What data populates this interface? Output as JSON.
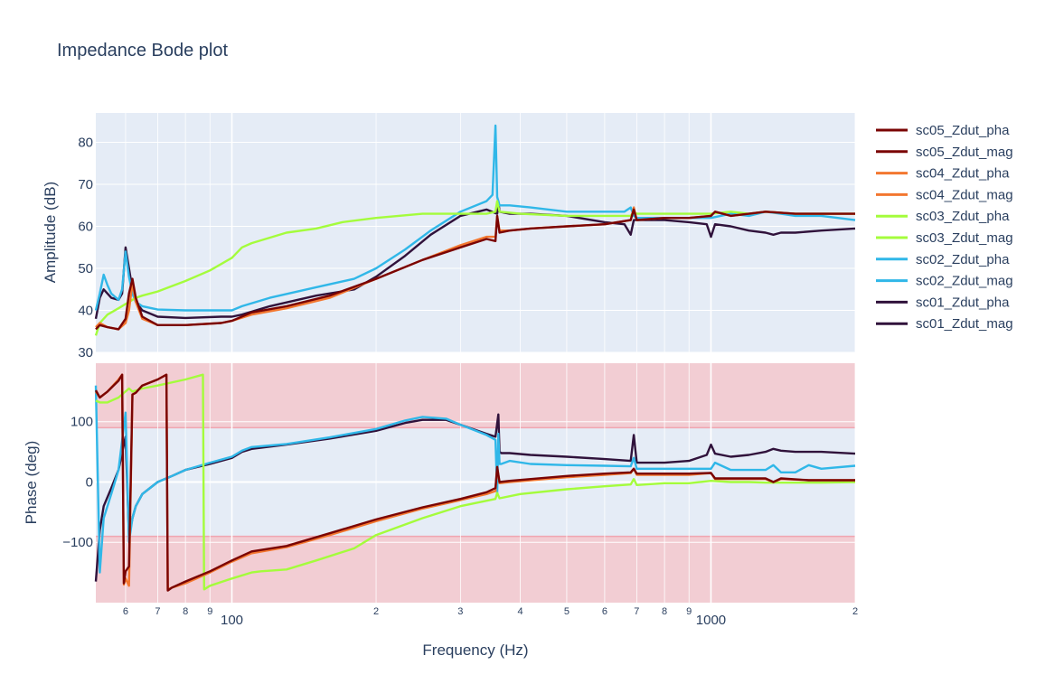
{
  "chart_data": {
    "type": "line",
    "title": "Impedance Bode plot",
    "xlabel": "Frequency (Hz)",
    "xscale": "log",
    "xlim": [
      52,
      2000
    ],
    "x_tick_labels": [
      "6",
      "7",
      "8",
      "9",
      "100",
      "2",
      "3",
      "4",
      "5",
      "6",
      "7",
      "8",
      "9",
      "1000",
      "2"
    ],
    "legend_position": "right",
    "colors": {
      "sc05": "#7a0403",
      "sc04": "#f3772f",
      "sc03": "#a4fc3c",
      "sc02": "#30b7e8",
      "sc01": "#30123b",
      "plot_background": "#e5ecf6",
      "phase_band": "#f2cdd3"
    },
    "legend": [
      "sc05_Zdut_pha",
      "sc05_Zdut_mag",
      "sc04_Zdut_pha",
      "sc04_Zdut_mag",
      "sc03_Zdut_pha",
      "sc03_Zdut_mag",
      "sc02_Zdut_pha",
      "sc02_Zdut_mag",
      "sc01_Zdut_pha",
      "sc01_Zdut_mag"
    ],
    "subplots": [
      {
        "name": "amplitude",
        "ylabel": "Amplitude (dB)",
        "ylim": [
          30,
          87
        ],
        "yticks": [
          30,
          40,
          50,
          60,
          70,
          80
        ],
        "series": [
          {
            "name": "sc01_Zdut_mag",
            "color": "#30123b",
            "x": [
              52,
              53,
              54,
              55,
              56,
              58,
              59,
              60,
              61,
              62,
              63,
              65,
              70,
              80,
              95,
              100,
              105,
              120,
              150,
              180,
              200,
              230,
              260,
              300,
              340,
              358,
              360,
              362,
              380,
              420,
              500,
              600,
              660,
              680,
              690,
              700,
              800,
              900,
              980,
              1000,
              1020,
              1100,
              1200,
              1300,
              1350,
              1400,
              1500,
              1700,
              2000
            ],
            "y": [
              38,
              43,
              45,
              44,
              43,
              42.5,
              44,
              55,
              50,
              45,
              42,
              40,
              38.5,
              38.2,
              38.5,
              38.5,
              39,
              41,
              43.5,
              45,
              48,
              53,
              58,
              62.5,
              64,
              63,
              66,
              63.5,
              63,
              63,
              62.5,
              61,
              60.5,
              58,
              61.5,
              61.5,
              61.5,
              61,
              60.5,
              57.5,
              60.5,
              60,
              59,
              58.5,
              58,
              58.5,
              58.5,
              59,
              59.5
            ]
          },
          {
            "name": "sc02_Zdut_mag",
            "color": "#30b7e8",
            "x": [
              52,
              53,
              54,
              55,
              56,
              58,
              59,
              60,
              61,
              62,
              63,
              65,
              70,
              80,
              95,
              100,
              105,
              120,
              150,
              180,
              200,
              230,
              260,
              300,
              340,
              350,
              355,
              358,
              362,
              380,
              420,
              500,
              600,
              660,
              680,
              690,
              700,
              800,
              900,
              1000,
              1100,
              1200,
              1300,
              1400,
              1500,
              1700,
              2000
            ],
            "y": [
              40,
              44,
              48.5,
              46,
              44,
              42.5,
              45,
              54,
              48,
              44,
              42,
              41,
              40.2,
              40,
              40,
              40,
              41,
              43,
              45.5,
              47.5,
              50,
              54.5,
              59,
              63.5,
              66,
              67.5,
              84,
              67,
              65,
              65,
              64.5,
              63.5,
              63.5,
              63.5,
              64.5,
              62.5,
              62,
              62,
              62,
              62,
              63,
              62.5,
              63.5,
              63,
              62.5,
              62.5,
              61.5
            ]
          },
          {
            "name": "sc03_Zdut_mag",
            "color": "#a4fc3c",
            "x": [
              52,
              53,
              55,
              58,
              61,
              63,
              65,
              70,
              80,
              90,
              100,
              105,
              110,
              130,
              150,
              170,
              200,
              250,
              300,
              340,
              355,
              358,
              362,
              400,
              500,
              600,
              680,
              690,
              700,
              800,
              900,
              1000,
              1100,
              1200,
              1300,
              1500,
              1700,
              2000
            ],
            "y": [
              34,
              37,
              39,
              40.5,
              42,
              43,
              43.5,
              44.5,
              47,
              49.5,
              52.5,
              55,
              56,
              58.5,
              59.5,
              61,
              62,
              63,
              63,
              63,
              63.5,
              66,
              63.5,
              63,
              62.5,
              62.5,
              62.5,
              63.5,
              63,
              63,
              63,
              63,
              63.5,
              63,
              63.5,
              63,
              63,
              63
            ]
          },
          {
            "name": "sc04_Zdut_mag",
            "color": "#f3772f",
            "x": [
              52,
              53,
              55,
              58,
              60,
              61,
              62,
              63,
              65,
              70,
              80,
              95,
              100,
              110,
              130,
              160,
              200,
              250,
              300,
              340,
              355,
              358,
              362,
              380,
              420,
              500,
              600,
              680,
              690,
              700,
              800,
              900,
              1000,
              1020,
              1100,
              1200,
              1300,
              1500,
              1700,
              2000
            ],
            "y": [
              36,
              37,
              36,
              35.5,
              37,
              40,
              46.5,
              42,
              38,
              36.5,
              36.5,
              37,
              37.5,
              39,
              40.5,
              43,
              47.5,
              52,
              55.5,
              57.5,
              57.5,
              62.5,
              59,
              59,
              59.5,
              60,
              60.5,
              61.5,
              64.5,
              61.5,
              62,
              62,
              62.5,
              63.5,
              62.5,
              63,
              63.5,
              63,
              63,
              63
            ]
          },
          {
            "name": "sc05_Zdut_mag",
            "color": "#7a0403",
            "x": [
              52,
              53,
              55,
              58,
              60,
              61,
              62,
              63,
              65,
              70,
              80,
              95,
              100,
              110,
              130,
              160,
              200,
              250,
              300,
              340,
              355,
              358,
              362,
              380,
              420,
              500,
              600,
              680,
              690,
              700,
              800,
              900,
              1000,
              1020,
              1100,
              1200,
              1300,
              1500,
              1700,
              2000
            ],
            "y": [
              35.5,
              36.5,
              36,
              35.5,
              38,
              44,
              47.5,
              43,
              38.5,
              36.5,
              36.5,
              37,
              37.5,
              39.5,
              41,
              43.5,
              47.5,
              52,
              55,
              57,
              56.5,
              62.5,
              58.5,
              59,
              59.5,
              60,
              60.5,
              61.5,
              64,
              61.5,
              62,
              62,
              62.5,
              63.5,
              62.5,
              63,
              63.5,
              63,
              63,
              63
            ]
          }
        ]
      },
      {
        "name": "phase",
        "ylabel": "Phase (deg)",
        "ylim": [
          -200,
          197
        ],
        "yticks": [
          -100,
          0,
          100
        ],
        "ytick_labels": [
          "−100",
          "0",
          "100"
        ],
        "bands": [
          [
            90,
            197
          ],
          [
            -200,
            -90
          ]
        ],
        "series": [
          {
            "name": "sc01_Zdut_pha",
            "color": "#30123b",
            "x": [
              52,
              53,
              54,
              56,
              58,
              60,
              61,
              62,
              63,
              65,
              70,
              75,
              80,
              90,
              100,
              105,
              110,
              130,
              160,
              200,
              230,
              250,
              280,
              300,
              340,
              355,
              360,
              362,
              365,
              380,
              420,
              500,
              600,
              680,
              690,
              700,
              800,
              900,
              980,
              1000,
              1020,
              1100,
              1200,
              1300,
              1350,
              1400,
              1500,
              1700,
              2000
            ],
            "y": [
              -165,
              -80,
              -40,
              -10,
              20,
              75,
              -90,
              -60,
              -40,
              -20,
              0,
              10,
              20,
              30,
              40,
              50,
              55,
              62,
              72,
              85,
              98,
              103,
              103,
              95,
              80,
              75,
              112,
              50,
              48,
              48,
              45,
              42,
              38,
              35,
              78,
              32,
              32,
              35,
              45,
              62,
              47,
              42,
              45,
              50,
              55,
              52,
              50,
              50,
              47
            ]
          },
          {
            "name": "sc02_Zdut_pha",
            "color": "#30b7e8",
            "x": [
              52,
              53,
              54,
              56,
              58,
              60,
              61,
              62,
              63,
              65,
              70,
              75,
              80,
              90,
              100,
              105,
              110,
              130,
              160,
              200,
              230,
              250,
              280,
              300,
              340,
              355,
              358,
              360,
              362,
              365,
              380,
              420,
              500,
              600,
              680,
              690,
              700,
              800,
              900,
              1000,
              1020,
              1100,
              1200,
              1300,
              1350,
              1400,
              1500,
              1600,
              1700,
              2000
            ],
            "y": [
              160,
              -150,
              -60,
              -20,
              20,
              115,
              -100,
              -60,
              -40,
              -20,
              0,
              10,
              20,
              32,
              42,
              52,
              58,
              63,
              74,
              88,
              102,
              108,
              105,
              95,
              78,
              70,
              -20,
              80,
              30,
              30,
              35,
              30,
              28,
              27,
              26,
              40,
              22,
              22,
              22,
              22,
              32,
              20,
              20,
              20,
              28,
              16,
              16,
              28,
              22,
              27
            ]
          },
          {
            "name": "sc03_Zdut_pha",
            "color": "#a4fc3c",
            "x": [
              52,
              53,
              55,
              58,
              61,
              62,
              65,
              70,
              80,
              87,
              87.5,
              90,
              100,
              110,
              115,
              130,
              150,
              180,
              200,
              250,
              300,
              355,
              358,
              362,
              400,
              500,
              600,
              680,
              690,
              700,
              800,
              900,
              1000,
              1100,
              1200,
              1300,
              1500,
              1700,
              2000
            ],
            "y": [
              135,
              132,
              132,
              140,
              155,
              150,
              155,
              160,
              170,
              178,
              -178,
              -172,
              -160,
              -150,
              -148,
              -145,
              -130,
              -110,
              -88,
              -60,
              -40,
              -28,
              -18,
              -27,
              -20,
              -12,
              -7,
              -4,
              5,
              -5,
              -2,
              -2,
              2,
              0,
              0,
              -1,
              -1,
              -1,
              0
            ]
          },
          {
            "name": "sc04_Zdut_pha",
            "color": "#f3772f",
            "x": [
              52,
              53,
              55,
              58,
              59,
              59.5,
              60,
              61,
              62,
              63,
              65,
              70,
              73,
              73.5,
              75,
              80,
              90,
              100,
              110,
              130,
              160,
              200,
              250,
              300,
              340,
              355,
              358,
              362,
              380,
              500,
              600,
              680,
              690,
              700,
              800,
              900,
              1000,
              1020,
              1100,
              1200,
              1300,
              1350,
              1400,
              1600,
              2000
            ],
            "y": [
              150,
              140,
              150,
              170,
              178,
              -170,
              -160,
              -172,
              145,
              148,
              160,
              170,
              178,
              -178,
              -175,
              -168,
              -150,
              -132,
              -118,
              -108,
              -88,
              -65,
              -44,
              -30,
              -20,
              -15,
              25,
              -2,
              0,
              8,
              12,
              15,
              22,
              12,
              12,
              12,
              15,
              5,
              5,
              5,
              5,
              0,
              5,
              3,
              3
            ]
          },
          {
            "name": "sc05_Zdut_pha",
            "color": "#7a0403",
            "x": [
              52,
              53,
              55,
              58,
              59,
              59.5,
              60,
              61,
              62,
              63,
              65,
              70,
              73,
              73.5,
              75,
              80,
              90,
              100,
              110,
              130,
              160,
              200,
              250,
              300,
              340,
              355,
              358,
              362,
              380,
              500,
              600,
              680,
              690,
              700,
              800,
              900,
              1000,
              1020,
              1100,
              1200,
              1300,
              1350,
              1400,
              1600,
              2000
            ],
            "y": [
              152,
              140,
              150,
              168,
              178,
              -168,
              -148,
              -140,
              145,
              148,
              160,
              170,
              178,
              -180,
              -175,
              -165,
              -148,
              -130,
              -115,
              -106,
              -85,
              -62,
              -42,
              -28,
              -17,
              -10,
              25,
              0,
              2,
              10,
              14,
              16,
              22,
              14,
              14,
              14,
              15,
              6,
              6,
              6,
              6,
              0,
              6,
              3,
              3
            ]
          }
        ]
      }
    ]
  }
}
